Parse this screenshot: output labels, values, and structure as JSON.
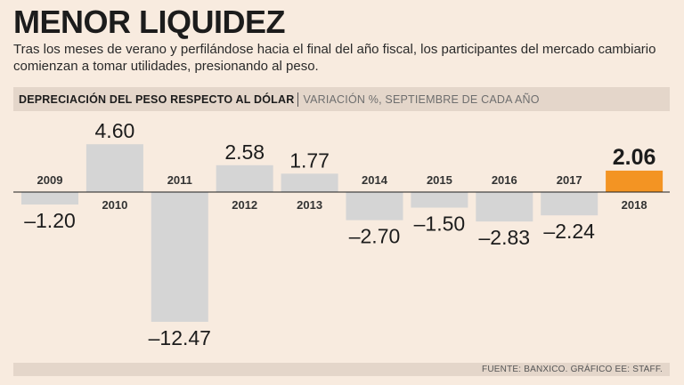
{
  "title": "MENOR LIQUIDEZ",
  "subtitle": "Tras los meses de verano y perfilándose hacia el final del año fiscal, los participantes del mercado cambiario comienzan a tomar utilidades, presionando al peso.",
  "header": {
    "main": "DEPRECIACIÓN DEL PESO RESPECTO AL DÓLAR",
    "detail": "VARIACIÓN %, SEPTIEMBRE DE CADA AÑO"
  },
  "footer": "FUENTE: BANXICO. GRÁFICO EE: STAFF.",
  "colors": {
    "bar": "#d5d5d5",
    "highlight": "#f39423",
    "background": "#f8ebdf",
    "band": "#e4d6ca"
  },
  "chart_data": {
    "type": "bar",
    "title": "DEPRECIACIÓN DEL PESO RESPECTO AL DÓLAR",
    "subtitle": "VARIACIÓN %, SEPTIEMBRE DE CADA AÑO",
    "xlabel": "",
    "ylabel": "",
    "categories": [
      "2009",
      "2010",
      "2011",
      "2012",
      "2013",
      "2014",
      "2015",
      "2016",
      "2017",
      "2018"
    ],
    "values": [
      -1.2,
      4.6,
      -12.47,
      2.58,
      1.77,
      -2.7,
      -1.5,
      -2.83,
      -2.24,
      2.06
    ],
    "value_labels": [
      "–1.20",
      "4.60",
      "–12.47",
      "2.58",
      "1.77",
      "–2.70",
      "–1.50",
      "–2.83",
      "–2.24",
      "2.06"
    ],
    "highlight": "2018",
    "ylim": [
      -12.47,
      4.6
    ],
    "grid": false
  }
}
